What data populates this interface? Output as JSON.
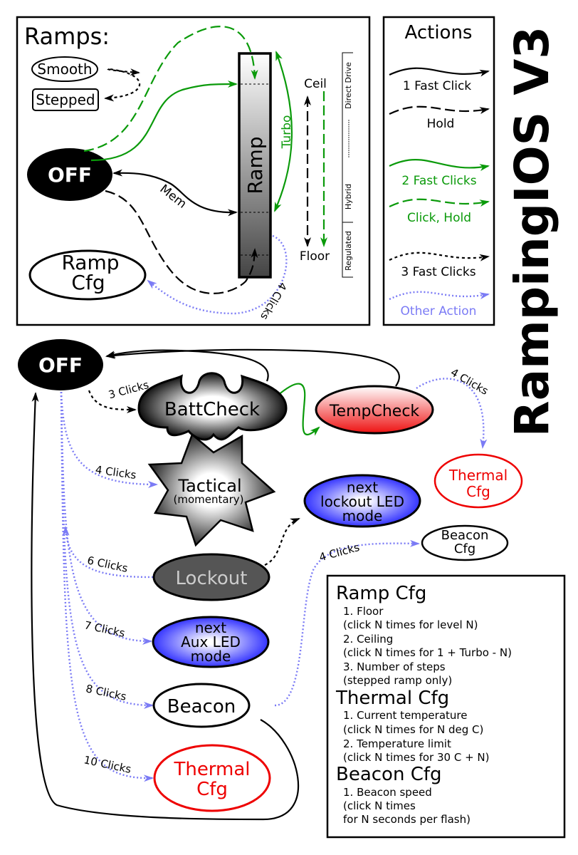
{
  "title": "RampingIOS V3",
  "colors": {
    "green": "#0a9a0a",
    "blue_dotted": "#7b7bf5",
    "red": "#ee0000",
    "lockout_fill": "#555555"
  },
  "ramps": {
    "heading": "Ramps:",
    "smooth": "Smooth",
    "stepped": "Stepped",
    "off": "OFF",
    "ramp": "Ramp",
    "ramp_cfg": [
      "Ramp",
      "Cfg"
    ],
    "turbo": "Turbo",
    "mem": "Mem",
    "ceil": "Ceil",
    "floor": "Floor",
    "four_clicks": "4 Clicks",
    "regulation": {
      "regulated": "Regulated",
      "hybrid": "Hybrid",
      "direct": "Direct Drive"
    }
  },
  "actions": {
    "heading": "Actions",
    "items": [
      {
        "label": "1 Fast Click",
        "style": "solid",
        "color": "#000000"
      },
      {
        "label": "Hold",
        "style": "dashed",
        "color": "#000000"
      },
      {
        "label": "2 Fast Clicks",
        "style": "solid",
        "color": "#0a9a0a"
      },
      {
        "label": "Click, Hold",
        "style": "dashed",
        "color": "#0a9a0a"
      },
      {
        "label": "3 Fast Clicks",
        "style": "dotted",
        "color": "#000000"
      },
      {
        "label": "Other Action",
        "style": "dotted",
        "color": "#7b7bf5"
      }
    ]
  },
  "graph": {
    "off": "OFF",
    "battcheck": "BattCheck",
    "tempcheck": "TempCheck",
    "thermal_cfg_top": [
      "Thermal",
      "Cfg"
    ],
    "tactical": [
      "Tactical",
      "(momentary)"
    ],
    "lockout_led": [
      "next",
      "lockout LED",
      "mode"
    ],
    "beacon_cfg": [
      "Beacon",
      "Cfg"
    ],
    "lockout": "Lockout",
    "aux_led": [
      "next",
      "Aux LED",
      "mode"
    ],
    "beacon": "Beacon",
    "thermal_cfg": [
      "Thermal",
      "Cfg"
    ],
    "edges": {
      "e3": "3 Clicks",
      "e4": "4 Clicks",
      "e6": "6 Clicks",
      "e7": "7 Clicks",
      "e8": "8 Clicks",
      "e10": "10 Clicks",
      "temp4": "4 Clicks",
      "beacon4": "4 Clicks"
    }
  },
  "legend": {
    "sections": [
      {
        "title": "Ramp Cfg",
        "lines": [
          "1. Floor",
          "   (click N times for level N)",
          "2. Ceiling",
          "   (click N times for 1 + Turbo - N)",
          "3. Number of steps",
          "   (stepped ramp only)"
        ]
      },
      {
        "title": "Thermal Cfg",
        "lines": [
          "1. Current temperature",
          "   (click N times for N deg C)",
          "2. Temperature limit",
          "   (click N times for 30 C + N)"
        ]
      },
      {
        "title": "Beacon Cfg",
        "lines": [
          "1. Beacon speed",
          "   (click N times",
          "    for N seconds per flash)"
        ]
      }
    ]
  }
}
